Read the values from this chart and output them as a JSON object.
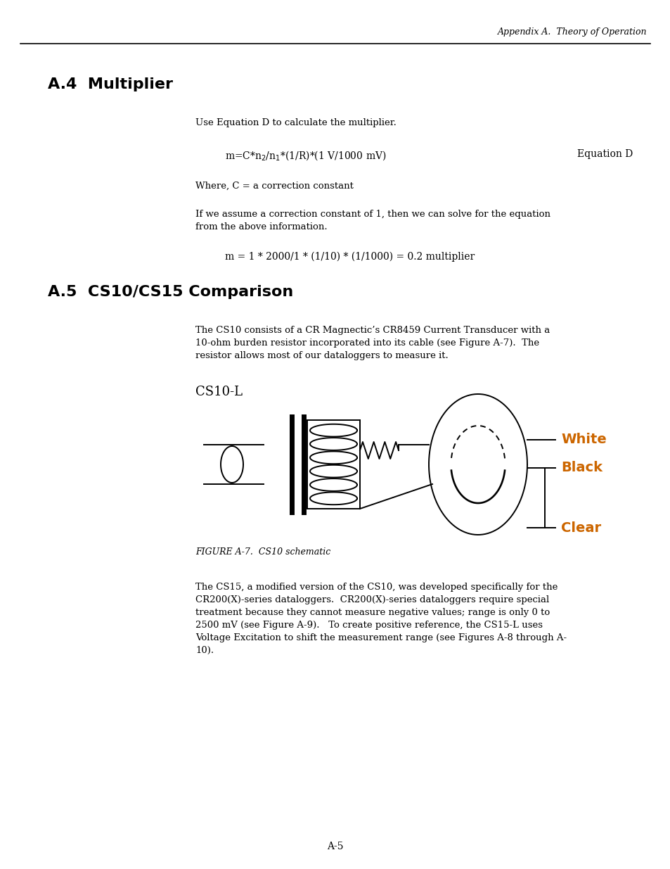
{
  "header_text": "Appendix A.  Theory of Operation",
  "section_a4_title": "A.4  Multiplier",
  "para1": "Use Equation D to calculate the multiplier.",
  "equation_label": "Equation D",
  "where_text": "Where, C = a correction constant",
  "para2_line1": "If we assume a correction constant of 1, then we can solve for the equation",
  "para2_line2": "from the above information.",
  "equation2": "m = 1 * 2000/1 * (1/10) * (1/1000) = 0.2 multiplier",
  "section_a5_title": "A.5  CS10/CS15 Comparison",
  "para3_line1": "The CS10 consists of a CR Magnectic’s CR8459 Current Transducer with a",
  "para3_line2": "10-ohm burden resistor incorporated into its cable (see Figure A-7).  The",
  "para3_line3": "resistor allows most of our dataloggers to measure it.",
  "cs10l_label": "CS10-L",
  "figure_caption": "FIGURE A-7.  CS10 schematic",
  "para4_line1": "The CS15, a modified version of the CS10, was developed specifically for the",
  "para4_line2": "CR200(X)-series dataloggers.  CR200(X)-series dataloggers require special",
  "para4_line3": "treatment because they cannot measure negative values; range is only 0 to",
  "para4_line4": "2500 mV (see Figure A-9).   To create positive reference, the CS15-L uses",
  "para4_line5": "Voltage Excitation to shift the measurement range (see Figures A-8 through A-",
  "para4_line6": "10).",
  "page_num": "A-5",
  "bg_color": "#ffffff",
  "text_color": "#000000",
  "label_white": "White",
  "label_black": "Black",
  "label_clear": "Clear",
  "label_color": "#cc6600"
}
